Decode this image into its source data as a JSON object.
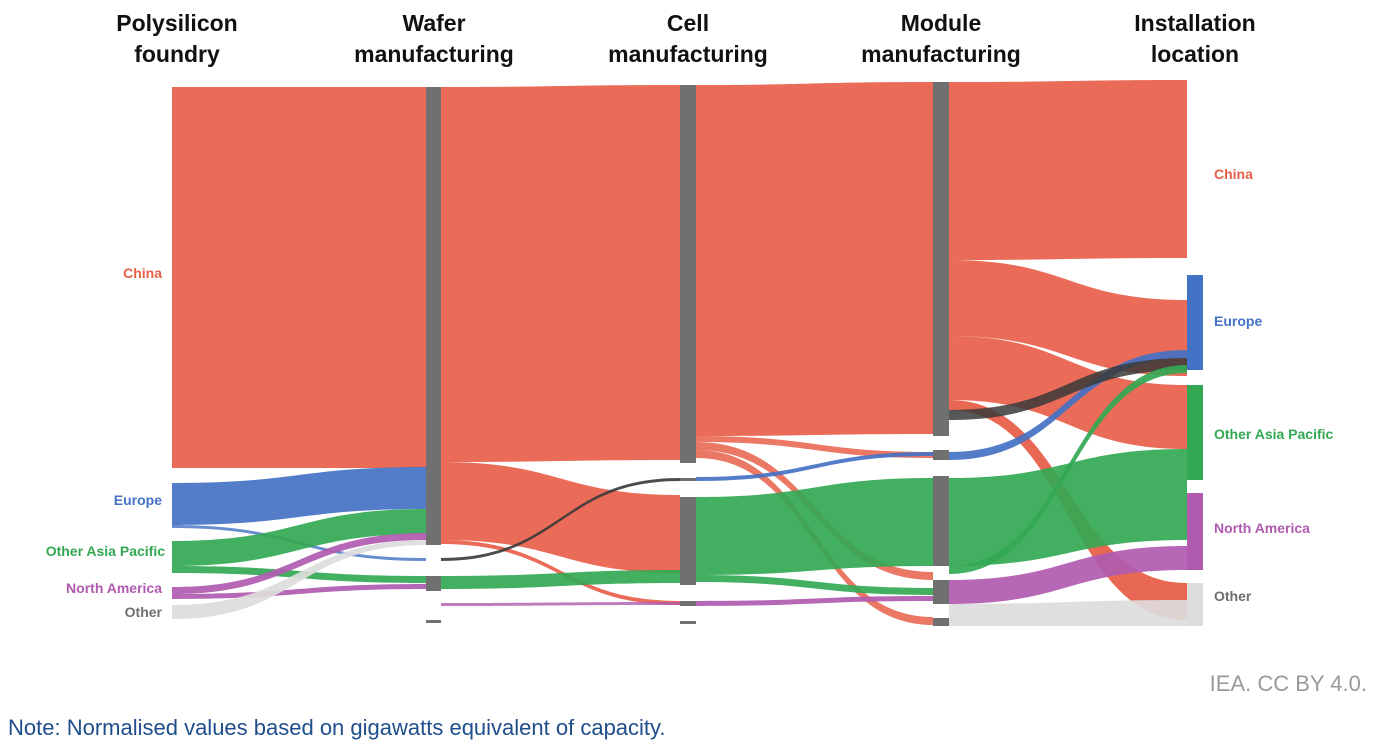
{
  "stages": [
    {
      "title": "Polysilicon\nfoundry"
    },
    {
      "title": "Wafer\nmanufacturing"
    },
    {
      "title": "Cell\nmanufacturing"
    },
    {
      "title": "Module\nmanufacturing"
    },
    {
      "title": "Installation\nlocation"
    }
  ],
  "source_labels": [
    {
      "name": "China",
      "color": "#e8604a"
    },
    {
      "name": "Europe",
      "color": "#4472c4"
    },
    {
      "name": "Other Asia Pacific",
      "color": "#33a852"
    },
    {
      "name": "North America",
      "color": "#b05bb0"
    },
    {
      "name": "Other",
      "color": "#6e6e6e"
    }
  ],
  "destination_labels": [
    {
      "name": "China",
      "color": "#e8604a"
    },
    {
      "name": "Europe",
      "color": "#4472c4"
    },
    {
      "name": "Other Asia Pacific",
      "color": "#33a852"
    },
    {
      "name": "North America",
      "color": "#b05bb0"
    },
    {
      "name": "Other",
      "color": "#6e6e6e"
    }
  ],
  "colors": {
    "China": "#e8604a",
    "Europe": "#4472c4",
    "Other Asia Pacific": "#33a852",
    "North America": "#b05bb0",
    "Other": "#dcdcdc",
    "node": "#707070"
  },
  "credit": "IEA. CC BY 4.0.",
  "note": "Note: Normalised values based on gigawatts equivalent of capacity."
}
